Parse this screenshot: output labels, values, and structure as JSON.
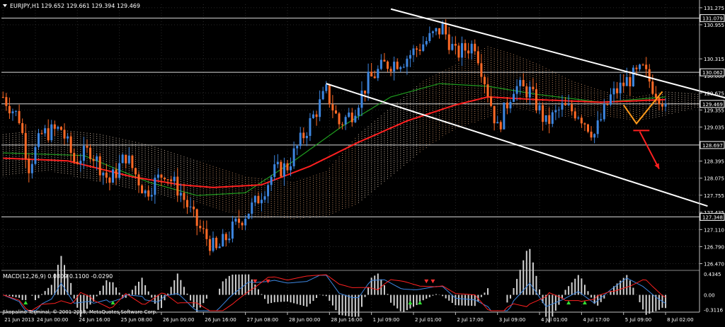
{
  "header": {
    "symbol": "EURJPY,H1",
    "ohlc": "129.652 129.661 129.394 129.469"
  },
  "footer": {
    "copyright": "Skopalino Terminal, © 2001-2013, MetaQuotes Software Corp."
  },
  "colors": {
    "background": "#000000",
    "grid": "#2a2a2a",
    "axis": "#bfbfbf",
    "text": "#ffffff",
    "bull": "#3d86e0",
    "bear": "#ff6a26",
    "ma_slow": "#ff2020",
    "ma_fast": "#1f9c1f",
    "cloud_bull": "#f0d8c0",
    "cloud_bear": "#e0a070",
    "channel": "#ffffff",
    "hline": "#ffffff",
    "forecast_orange": "#ff9a1a",
    "forecast_red": "#ff2020",
    "macd_hist": "#d0d0d0",
    "macd_line": "#3d86e0",
    "macd_signal": "#ff2020",
    "div_green": "#33dd33",
    "div_red": "#ff3030",
    "price_box_bg": "#000000",
    "price_box_border": "#ffffff"
  },
  "chart_data": {
    "type": "candlestick",
    "symbol": "EURJPY",
    "timeframe": "H1",
    "y_ticks": [
      "131.275",
      "130.955",
      "130.315",
      "130.000",
      "129.675",
      "129.355",
      "129.035",
      "128.395",
      "128.075",
      "127.755",
      "127.435",
      "127.110",
      "126.790",
      "126.470"
    ],
    "y_tick_values": [
      131.275,
      130.955,
      130.315,
      130.0,
      129.675,
      129.355,
      129.035,
      128.395,
      128.075,
      127.755,
      127.435,
      127.11,
      126.79,
      126.47
    ],
    "ylim": [
      126.37,
      131.34
    ],
    "price_boxes": [
      "131.079",
      "130.062",
      "129.469",
      "128.697",
      "127.348"
    ],
    "price_box_values": [
      131.079,
      130.062,
      129.469,
      128.697,
      127.348
    ],
    "horizontal_levels": [
      131.079,
      130.062,
      129.469,
      128.697,
      127.348
    ],
    "x_tick_labels": [
      "21 Jun 2013",
      "24 Jun 00:00",
      "24 Jun 16:00",
      "25 Jun 08:00",
      "26 Jun 00:00",
      "26 Jun 16:00",
      "27 Jun 08:00",
      "28 Jun 00:00",
      "28 Jun 16:00",
      "1 Jul 09:00",
      "2 Jul 01:00",
      "2 Jul 17:00",
      "3 Jul 09:00",
      "4 Jul 01:00",
      "4 Jul 17:00",
      "5 Jul 09:00",
      "8 Jul 02:00"
    ],
    "x_tick_index": [
      0,
      10,
      23,
      36,
      49,
      62,
      75,
      88,
      101,
      114,
      127,
      140,
      153,
      166,
      179,
      192,
      205
    ],
    "bar_count": 210,
    "path_points": [
      [
        0,
        129.6
      ],
      [
        5,
        129.2
      ],
      [
        8,
        128.3
      ],
      [
        12,
        128.9
      ],
      [
        18,
        129.0
      ],
      [
        22,
        128.4
      ],
      [
        27,
        128.6
      ],
      [
        33,
        128.0
      ],
      [
        38,
        128.5
      ],
      [
        44,
        127.8
      ],
      [
        50,
        128.2
      ],
      [
        55,
        127.8
      ],
      [
        60,
        127.2
      ],
      [
        66,
        126.7
      ],
      [
        72,
        127.2
      ],
      [
        78,
        127.6
      ],
      [
        84,
        128.2
      ],
      [
        88,
        128.3
      ],
      [
        94,
        129.0
      ],
      [
        100,
        129.7
      ],
      [
        104,
        129.1
      ],
      [
        108,
        129.3
      ],
      [
        113,
        129.9
      ],
      [
        118,
        130.2
      ],
      [
        124,
        130.3
      ],
      [
        130,
        130.6
      ],
      [
        136,
        130.9
      ],
      [
        140,
        130.4
      ],
      [
        146,
        130.6
      ],
      [
        150,
        129.7
      ],
      [
        153,
        129.0
      ],
      [
        158,
        129.8
      ],
      [
        163,
        129.7
      ],
      [
        168,
        129.1
      ],
      [
        173,
        129.4
      ],
      [
        178,
        129.3
      ],
      [
        183,
        128.9
      ],
      [
        188,
        129.6
      ],
      [
        193,
        129.9
      ],
      [
        198,
        130.1
      ],
      [
        201,
        129.8
      ],
      [
        205,
        129.469
      ]
    ],
    "ma_slow_points": [
      [
        0,
        128.45
      ],
      [
        20,
        128.4
      ],
      [
        40,
        128.1
      ],
      [
        55,
        127.95
      ],
      [
        65,
        127.9
      ],
      [
        80,
        127.95
      ],
      [
        95,
        128.3
      ],
      [
        110,
        128.75
      ],
      [
        125,
        129.15
      ],
      [
        140,
        129.45
      ],
      [
        150,
        129.6
      ],
      [
        165,
        129.55
      ],
      [
        185,
        129.5
      ],
      [
        205,
        129.55
      ]
    ],
    "ma_fast_points": [
      [
        0,
        128.55
      ],
      [
        25,
        128.5
      ],
      [
        45,
        128.0
      ],
      [
        60,
        127.75
      ],
      [
        75,
        127.8
      ],
      [
        90,
        128.4
      ],
      [
        105,
        129.05
      ],
      [
        120,
        129.6
      ],
      [
        135,
        129.85
      ],
      [
        150,
        129.8
      ],
      [
        165,
        129.65
      ],
      [
        185,
        129.5
      ],
      [
        205,
        129.6
      ]
    ],
    "cloud": {
      "upper": [
        [
          0,
          128.9
        ],
        [
          15,
          129.0
        ],
        [
          30,
          128.9
        ],
        [
          45,
          128.7
        ],
        [
          60,
          128.4
        ],
        [
          75,
          128.1
        ],
        [
          90,
          128.0
        ],
        [
          100,
          128.2
        ],
        [
          110,
          128.9
        ],
        [
          120,
          129.4
        ],
        [
          130,
          129.9
        ],
        [
          140,
          130.2
        ],
        [
          150,
          130.55
        ],
        [
          158,
          130.4
        ],
        [
          166,
          130.2
        ],
        [
          176,
          129.9
        ],
        [
          186,
          129.7
        ],
        [
          196,
          129.6
        ],
        [
          205,
          129.7
        ],
        [
          215,
          129.65
        ]
      ],
      "lower": [
        [
          0,
          128.1
        ],
        [
          15,
          128.2
        ],
        [
          30,
          128.0
        ],
        [
          45,
          127.8
        ],
        [
          60,
          127.6
        ],
        [
          75,
          127.35
        ],
        [
          90,
          127.3
        ],
        [
          100,
          127.35
        ],
        [
          110,
          127.6
        ],
        [
          120,
          128.1
        ],
        [
          130,
          128.6
        ],
        [
          140,
          129.0
        ],
        [
          150,
          129.2
        ],
        [
          158,
          129.4
        ],
        [
          166,
          129.3
        ],
        [
          176,
          129.2
        ],
        [
          186,
          129.25
        ],
        [
          196,
          129.15
        ],
        [
          205,
          129.25
        ],
        [
          215,
          129.4
        ]
      ]
    },
    "channel_lines": [
      {
        "from": [
          120,
          131.25
        ],
        "to": [
          238,
          129.35
        ]
      },
      {
        "from": [
          100,
          129.85
        ],
        "to": [
          218,
          127.55
        ]
      }
    ],
    "forecast_orange": [
      [
        192,
        129.45
      ],
      [
        196,
        129.1
      ],
      [
        204,
        129.7
      ]
    ],
    "forecast_red_arrow": {
      "from": [
        197,
        128.95
      ],
      "to": [
        203,
        128.25
      ]
    },
    "forecast_red_tick": [
      [
        195,
        128.97
      ],
      [
        200,
        128.97
      ]
    ],
    "macd": {
      "label": "MACD(12,26,9) 0.0809 0.1100 -0.0290",
      "y_ticks": [
        "0.4345",
        "0.00",
        "-0.3116"
      ],
      "y_tick_values": [
        0.4345,
        0.0,
        -0.3116
      ],
      "ylim": [
        -0.36,
        0.48
      ]
    },
    "macd_green_arrows": [
      7,
      34,
      126,
      129,
      175,
      180
    ],
    "macd_red_arrows": [
      78,
      82,
      131,
      133
    ]
  }
}
